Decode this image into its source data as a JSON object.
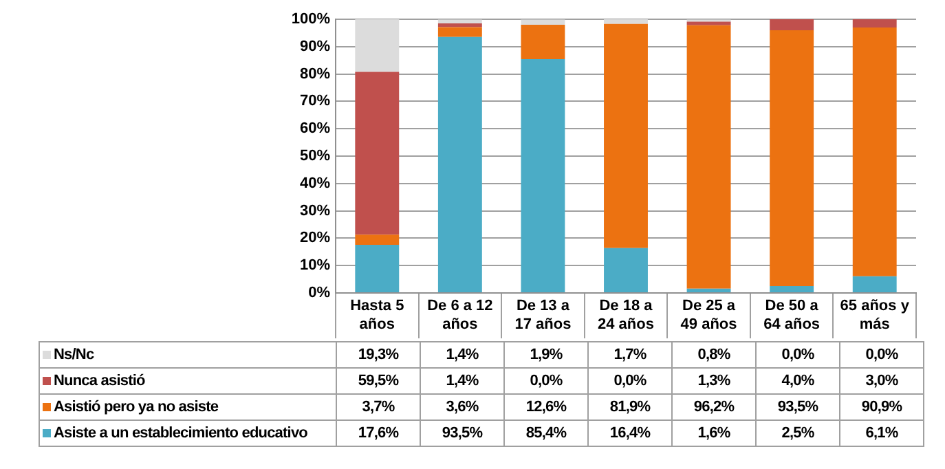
{
  "chart_data": {
    "type": "bar",
    "stacked": true,
    "categories": [
      "Hasta 5 años",
      "De 6 a 12 años",
      "De 13 a 17 años",
      "De 18 a 24 años",
      "De 25 a 49 años",
      "De 50 a 64 años",
      "65 años y más"
    ],
    "series": [
      {
        "name": "Asiste a un establecimiento educativo",
        "color": "#4bacc6",
        "values": [
          17.6,
          93.5,
          85.4,
          16.4,
          1.6,
          2.5,
          6.1
        ],
        "value_labels": [
          "17,6%",
          "93,5%",
          "85,4%",
          "16,4%",
          "1,6%",
          "2,5%",
          "6,1%"
        ]
      },
      {
        "name": "Asistió pero ya no asiste",
        "color": "#ec7211",
        "values": [
          3.7,
          3.6,
          12.6,
          81.9,
          96.2,
          93.5,
          90.9
        ],
        "value_labels": [
          "3,7%",
          "3,6%",
          "12,6%",
          "81,9%",
          "96,2%",
          "93,5%",
          "90,9%"
        ]
      },
      {
        "name": "Nunca asistió",
        "color": "#c0504d",
        "values": [
          59.5,
          1.4,
          0.0,
          0.0,
          1.3,
          4.0,
          3.0
        ],
        "value_labels": [
          "59,5%",
          "1,4%",
          "0,0%",
          "0,0%",
          "1,3%",
          "4,0%",
          "3,0%"
        ]
      },
      {
        "name": "Ns/Nc",
        "color": "#dcdcdc",
        "values": [
          19.3,
          1.4,
          1.9,
          1.7,
          0.8,
          0.0,
          0.0
        ],
        "value_labels": [
          "19,3%",
          "1,4%",
          "1,9%",
          "1,7%",
          "0,8%",
          "0,0%",
          "0,0%"
        ]
      }
    ],
    "ylim": [
      0,
      100
    ],
    "yticks": [
      {
        "value": 0,
        "label": "0%"
      },
      {
        "value": 10,
        "label": "10%"
      },
      {
        "value": 20,
        "label": "20%"
      },
      {
        "value": 30,
        "label": "30%"
      },
      {
        "value": 40,
        "label": "40%"
      },
      {
        "value": 50,
        "label": "50%"
      },
      {
        "value": 60,
        "label": "60%"
      },
      {
        "value": 70,
        "label": "70%"
      },
      {
        "value": 80,
        "label": "80%"
      },
      {
        "value": 90,
        "label": "90%"
      },
      {
        "value": 100,
        "label": "100%"
      }
    ],
    "grid": "y",
    "legend": "bottom"
  }
}
